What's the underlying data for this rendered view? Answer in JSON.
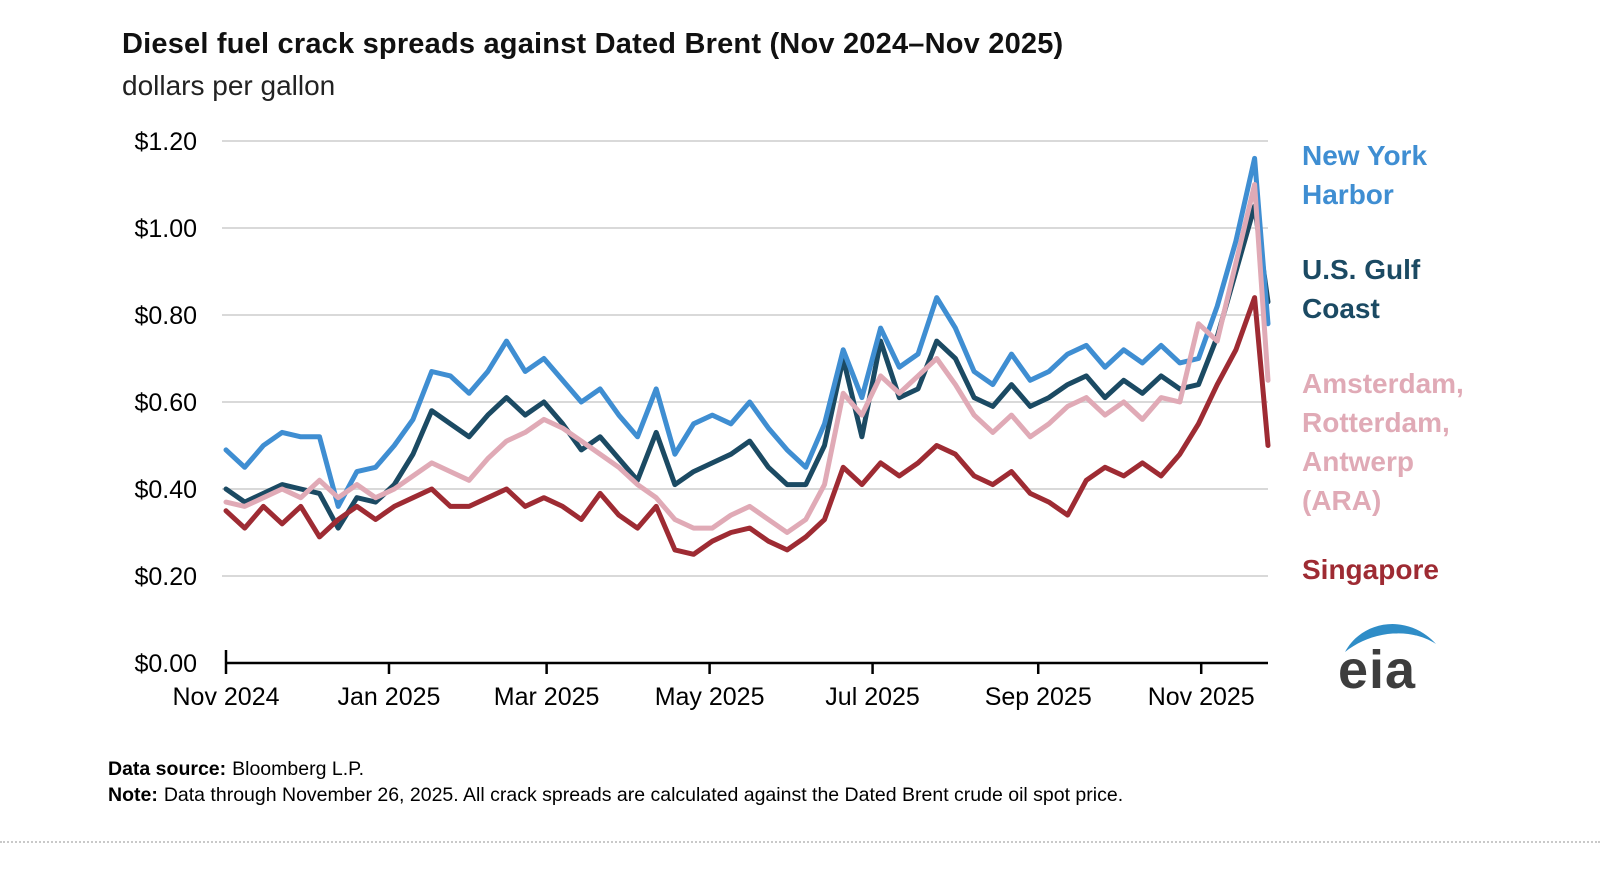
{
  "title": "Diesel fuel crack spreads against Dated Brent (Nov 2024–Nov 2025)",
  "subtitle": "dollars per gallon",
  "footer": {
    "source_label": "Data source:",
    "source_text": "Bloomberg L.P.",
    "note_label": "Note:",
    "note_text": "Data through November 26, 2025. All crack spreads are calculated against the Dated Brent crude oil spot price."
  },
  "logo": {
    "text": "eia",
    "swoosh_color": "#2f8dc7",
    "text_color": "#3d3d3d"
  },
  "legend": {
    "position": "right",
    "items": [
      {
        "name": "New York Harbor",
        "color": "#3f8ed2",
        "lines": [
          "New York",
          "Harbor"
        ]
      },
      {
        "name": "U.S. Gulf Coast",
        "color": "#1b4a63",
        "lines": [
          "U.S. Gulf",
          "Coast"
        ]
      },
      {
        "name": "Amsterdam, Rotterdam, Antwerp (ARA)",
        "color": "#e0aab6",
        "lines": [
          "Amsterdam,",
          "Rotterdam,",
          "Antwerp",
          "(ARA)"
        ]
      },
      {
        "name": "Singapore",
        "color": "#9e2b33",
        "lines": [
          "Singapore"
        ]
      }
    ]
  },
  "chart_data": {
    "type": "line",
    "title": "Diesel fuel crack spreads against Dated Brent (Nov 2024–Nov 2025)",
    "ylabel": "dollars per gallon",
    "xlabel": "",
    "ylim": [
      0,
      1.2
    ],
    "grid": "horizontal",
    "grid_color": "#d9d9d9",
    "axis_color": "#000000",
    "legend_position": "right",
    "x_unit": "days since 2024-11-01",
    "x_end_label": "2025-11-26",
    "yticks": [
      {
        "value": 0.0,
        "label": "$0.00"
      },
      {
        "value": 0.2,
        "label": "$0.20"
      },
      {
        "value": 0.4,
        "label": "$0.40"
      },
      {
        "value": 0.6,
        "label": "$0.60"
      },
      {
        "value": 0.8,
        "label": "$0.80"
      },
      {
        "value": 1.0,
        "label": "$1.00"
      },
      {
        "value": 1.2,
        "label": "$1.20"
      }
    ],
    "xticks": [
      {
        "day": 0,
        "label": "Nov 2024"
      },
      {
        "day": 61,
        "label": "Jan 2025"
      },
      {
        "day": 120,
        "label": "Mar 2025"
      },
      {
        "day": 181,
        "label": "May 2025"
      },
      {
        "day": 242,
        "label": "Jul 2025"
      },
      {
        "day": 304,
        "label": "Sep 2025"
      },
      {
        "day": 365,
        "label": "Nov 2025"
      }
    ],
    "x_days": [
      0,
      7,
      14,
      21,
      28,
      35,
      42,
      49,
      56,
      63,
      70,
      77,
      84,
      91,
      98,
      105,
      112,
      119,
      126,
      133,
      140,
      147,
      154,
      161,
      168,
      175,
      182,
      189,
      196,
      203,
      210,
      217,
      224,
      231,
      238,
      245,
      252,
      259,
      266,
      273,
      280,
      287,
      294,
      301,
      308,
      315,
      322,
      329,
      336,
      343,
      350,
      357,
      364,
      371,
      378,
      385,
      390
    ],
    "draw_order": [
      1,
      0,
      2,
      3
    ],
    "series": [
      {
        "id": "new-york-harbor",
        "name": "New York Harbor",
        "color": "#3f8ed2",
        "values": [
          0.49,
          0.45,
          0.5,
          0.53,
          0.52,
          0.52,
          0.36,
          0.44,
          0.45,
          0.5,
          0.56,
          0.67,
          0.66,
          0.62,
          0.67,
          0.74,
          0.67,
          0.7,
          0.65,
          0.6,
          0.63,
          0.57,
          0.52,
          0.63,
          0.48,
          0.55,
          0.57,
          0.55,
          0.6,
          0.54,
          0.49,
          0.45,
          0.55,
          0.72,
          0.61,
          0.77,
          0.68,
          0.71,
          0.84,
          0.77,
          0.67,
          0.64,
          0.71,
          0.65,
          0.67,
          0.71,
          0.73,
          0.68,
          0.72,
          0.69,
          0.73,
          0.69,
          0.7,
          0.82,
          0.97,
          1.16,
          0.78
        ]
      },
      {
        "id": "us-gulf-coast",
        "name": "U.S. Gulf Coast",
        "color": "#1b4a63",
        "values": [
          0.4,
          0.37,
          0.39,
          0.41,
          0.4,
          0.39,
          0.31,
          0.38,
          0.37,
          0.41,
          0.48,
          0.58,
          0.55,
          0.52,
          0.57,
          0.61,
          0.57,
          0.6,
          0.55,
          0.49,
          0.52,
          0.47,
          0.42,
          0.53,
          0.41,
          0.44,
          0.46,
          0.48,
          0.51,
          0.45,
          0.41,
          0.41,
          0.5,
          0.7,
          0.52,
          0.74,
          0.61,
          0.63,
          0.74,
          0.7,
          0.61,
          0.59,
          0.64,
          0.59,
          0.61,
          0.64,
          0.66,
          0.61,
          0.65,
          0.62,
          0.66,
          0.63,
          0.64,
          0.75,
          0.9,
          1.05,
          0.83
        ]
      },
      {
        "id": "ara",
        "name": "Amsterdam, Rotterdam, Antwerp (ARA)",
        "color": "#e0aab6",
        "values": [
          0.37,
          0.36,
          0.38,
          0.4,
          0.38,
          0.42,
          0.38,
          0.41,
          0.38,
          0.4,
          0.43,
          0.46,
          0.44,
          0.42,
          0.47,
          0.51,
          0.53,
          0.56,
          0.54,
          0.51,
          0.48,
          0.45,
          0.41,
          0.38,
          0.33,
          0.31,
          0.31,
          0.34,
          0.36,
          0.33,
          0.3,
          0.33,
          0.41,
          0.62,
          0.57,
          0.66,
          0.62,
          0.66,
          0.7,
          0.64,
          0.57,
          0.53,
          0.57,
          0.52,
          0.55,
          0.59,
          0.61,
          0.57,
          0.6,
          0.56,
          0.61,
          0.6,
          0.78,
          0.74,
          0.92,
          1.1,
          0.65
        ]
      },
      {
        "id": "singapore",
        "name": "Singapore",
        "color": "#9e2b33",
        "values": [
          0.35,
          0.31,
          0.36,
          0.32,
          0.36,
          0.29,
          0.33,
          0.36,
          0.33,
          0.36,
          0.38,
          0.4,
          0.36,
          0.36,
          0.38,
          0.4,
          0.36,
          0.38,
          0.36,
          0.33,
          0.39,
          0.34,
          0.31,
          0.36,
          0.26,
          0.25,
          0.28,
          0.3,
          0.31,
          0.28,
          0.26,
          0.29,
          0.33,
          0.45,
          0.41,
          0.46,
          0.43,
          0.46,
          0.5,
          0.48,
          0.43,
          0.41,
          0.44,
          0.39,
          0.37,
          0.34,
          0.42,
          0.45,
          0.43,
          0.46,
          0.43,
          0.48,
          0.55,
          0.64,
          0.72,
          0.84,
          0.5
        ]
      }
    ]
  }
}
